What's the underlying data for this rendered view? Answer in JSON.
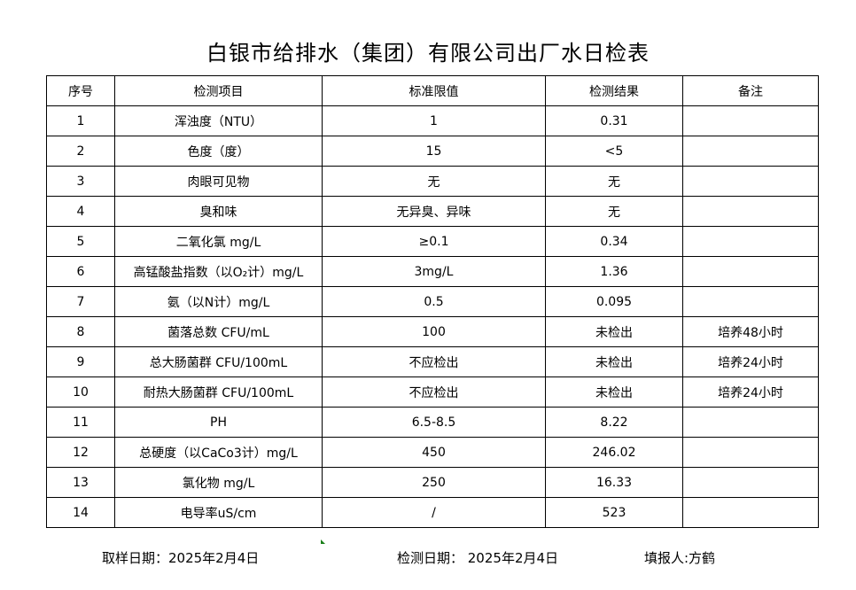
{
  "title": "白银市给排水（集团）有限公司出厂水日检表",
  "headers": [
    "序号",
    "检测项目",
    "标准限值",
    "检测结果",
    "备注"
  ],
  "rows": [
    [
      "1",
      "浑浊度（NTU）",
      "1",
      "0.31",
      ""
    ],
    [
      "2",
      "色度（度）",
      "15",
      "<5",
      ""
    ],
    [
      "3",
      "肉眼可见物",
      "无",
      "无",
      ""
    ],
    [
      "4",
      "臭和味",
      "无异臭、异味",
      "无",
      ""
    ],
    [
      "5",
      "二氧化氯 mg/L",
      "≥0.1",
      "0.34",
      ""
    ],
    [
      "6",
      "高锰酸盐指数（以O₂计）mg/L",
      "3mg/L",
      "1.36",
      ""
    ],
    [
      "7",
      "氨（以N计）mg/L",
      "0.5",
      "0.095",
      ""
    ],
    [
      "8",
      "菌落总数 CFU/mL",
      "100",
      "未检出",
      "培养48小时"
    ],
    [
      "9",
      "总大肠菌群 CFU/100mL",
      "不应检出",
      "未检出",
      "培养24小时"
    ],
    [
      "10",
      "耐热大肠菌群 CFU/100mL",
      "不应检出",
      "未检出",
      "培养24小时"
    ],
    [
      "11",
      "PH",
      "6.5-8.5",
      "8.22",
      ""
    ],
    [
      "12",
      "总硬度（以CaCo3计）mg/L",
      "450",
      "246.02",
      ""
    ],
    [
      "13",
      "氯化物 mg/L",
      "250",
      "16.33",
      ""
    ],
    [
      "14",
      "电导率uS/cm",
      "/",
      "523",
      ""
    ]
  ],
  "footer": {
    "sampling_date": "取样日期：2025年2月4日",
    "test_date": "检测日期：  2025年2月4日",
    "reporter": "填报人:方鹤"
  }
}
